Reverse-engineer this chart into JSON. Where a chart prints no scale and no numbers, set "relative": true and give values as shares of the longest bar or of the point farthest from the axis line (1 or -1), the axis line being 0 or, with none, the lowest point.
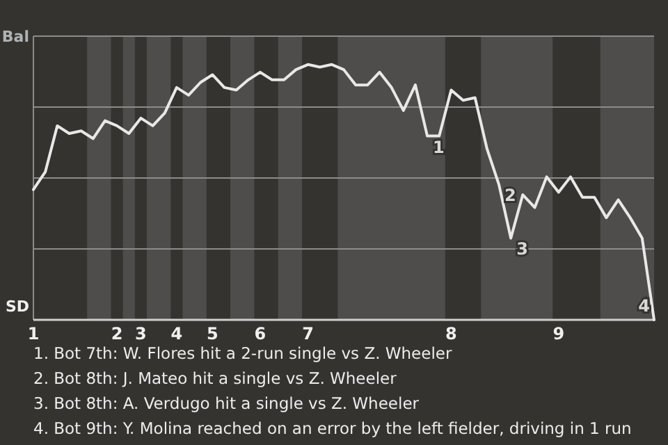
{
  "chart_data": {
    "type": "line",
    "relative": true,
    "grid": "y",
    "categories": [
      "1",
      null,
      null,
      null,
      null,
      null,
      null,
      "2",
      null,
      "3",
      null,
      null,
      "4",
      null,
      null,
      "5",
      null,
      null,
      null,
      "6",
      null,
      null,
      null,
      "7",
      null,
      null,
      null,
      null,
      null,
      null,
      null,
      null,
      null,
      null,
      null,
      "8",
      null,
      null,
      null,
      null,
      null,
      null,
      null,
      null,
      "9",
      null,
      null,
      null,
      null,
      null,
      null,
      null,
      null
    ],
    "series": [
      {
        "color": "#e8e8e8",
        "values": [
          0.51,
          0.58,
          0.76,
          0.73,
          0.74,
          0.71,
          0.78,
          0.76,
          0.73,
          0.79,
          0.76,
          0.81,
          0.91,
          0.88,
          0.93,
          0.96,
          0.91,
          0.9,
          0.94,
          0.97,
          0.94,
          0.94,
          0.98,
          1,
          0.99,
          1,
          0.98,
          0.92,
          0.92,
          0.97,
          0.91,
          0.82,
          0.92,
          0.72,
          0.72,
          0.9,
          0.86,
          0.87,
          0.67,
          0.53,
          0.32,
          0.49,
          0.44,
          0.56,
          0.5,
          0.56,
          0.48,
          0.48,
          0.4,
          0.47,
          0.4,
          0.32,
          0
        ]
      }
    ],
    "annotations": [
      "Bal",
      "SD",
      "1",
      "2",
      "3",
      "4",
      "1. Bot 7th: W. Flores hit a 2-run single vs Z. Wheeler",
      "2. Bot 8th: J. Mateo hit a single vs Z. Wheeler",
      "3. Bot 8th: A. Verdugo hit a single vs Z. Wheeler",
      "4. Bot 9th: Y. Molina reached on an error by the left fielder, driving in 1 run"
    ]
  }
}
